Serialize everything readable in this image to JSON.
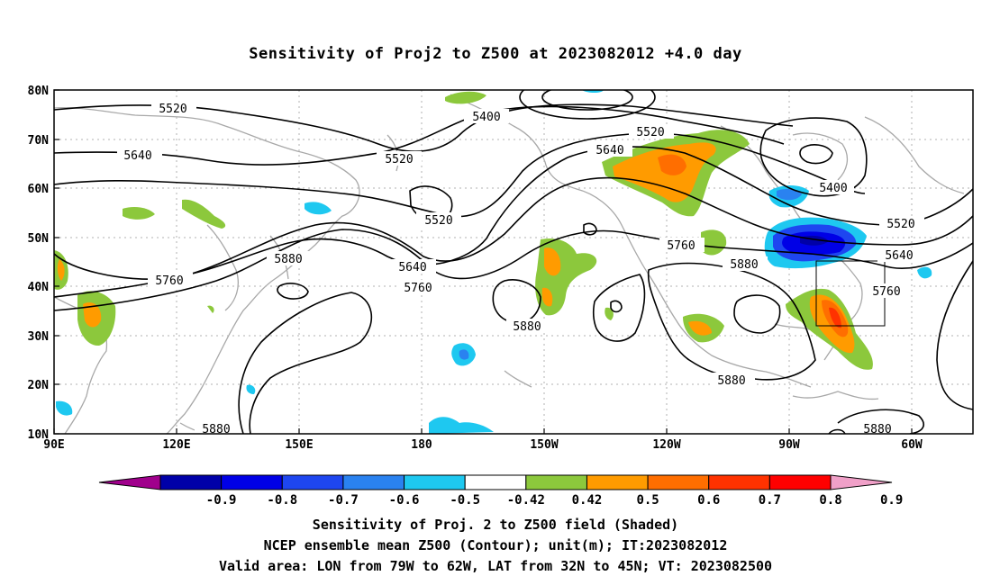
{
  "title": "Sensitivity of Proj2 to Z500 at 2023082012 +4.0 day",
  "axes": {
    "lat_labels": [
      "80N",
      "70N",
      "60N",
      "50N",
      "40N",
      "30N",
      "20N",
      "10N"
    ],
    "lon_labels": [
      "90E",
      "120E",
      "150E",
      "180",
      "150W",
      "120W",
      "90W",
      "60W"
    ]
  },
  "contour_labels": [
    "5400",
    "5400",
    "5520",
    "5520",
    "5520",
    "5520",
    "5520",
    "5640",
    "5640",
    "5640",
    "5640",
    "5760",
    "5760",
    "5760",
    "5760",
    "5880",
    "5880",
    "5880",
    "5880",
    "5880",
    "5880"
  ],
  "colorbar": {
    "labels": [
      "-0.9",
      "-0.8",
      "-0.7",
      "-0.6",
      "-0.5",
      "-0.42",
      "0.42",
      "0.5",
      "0.6",
      "0.7",
      "0.8",
      "0.9"
    ],
    "colors": [
      "#a0008c",
      "#0000a8",
      "#0000e6",
      "#1e46f0",
      "#2a82f0",
      "#1ec8f0",
      "#ffffff",
      "#8cc83c",
      "#ff9b00",
      "#ff6e00",
      "#ff3200",
      "#ff0000",
      "#f0a0c8"
    ]
  },
  "captions": {
    "line1": "Sensitivity of Proj. 2 to Z500 field (Shaded)",
    "line2": "NCEP ensemble mean Z500 (Contour); unit(m); IT:2023082012",
    "line3": "Valid area: LON from 79W to 62W, LAT from 32N to 45N; VT: 2023082500"
  }
}
